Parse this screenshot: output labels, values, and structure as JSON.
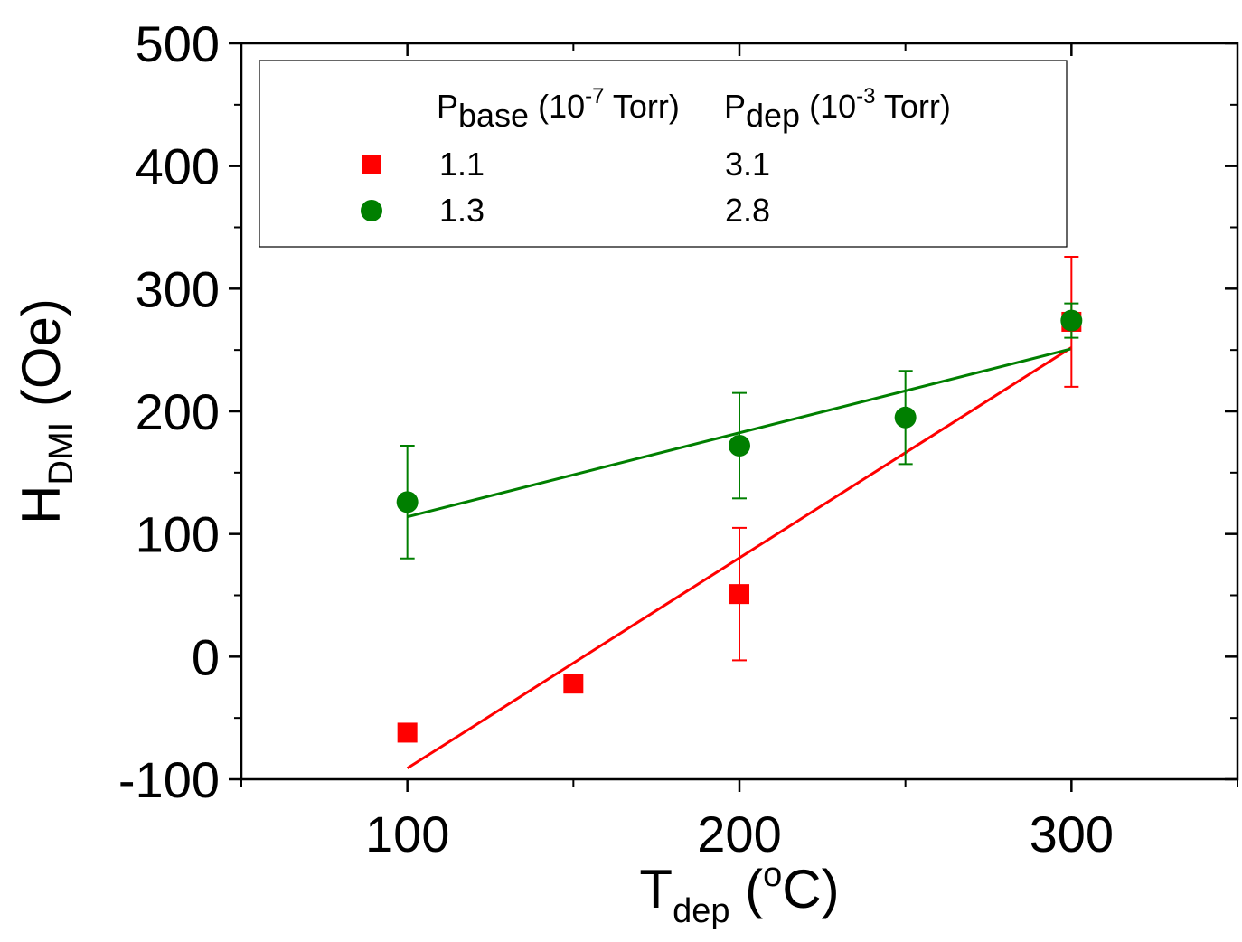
{
  "chart_data": {
    "type": "scatter",
    "xlabel": {
      "main": "T",
      "sub": "dep",
      "open": " (",
      "sup": "o",
      "unit": "C)"
    },
    "ylabel": {
      "main": "H",
      "sub": "DMI",
      "unit": " (Oe)"
    },
    "xlim": [
      50,
      350
    ],
    "ylim": [
      -100,
      500
    ],
    "x_ticks": [
      100,
      200,
      300
    ],
    "y_ticks": [
      -100,
      0,
      100,
      200,
      300,
      400,
      500
    ],
    "x_tick_labels": [
      "100",
      "200",
      "300"
    ],
    "y_tick_labels": [
      "-100",
      "0",
      "100",
      "200",
      "300",
      "400",
      "500"
    ],
    "legend": {
      "position": "top",
      "col1": {
        "main": "P",
        "sub": "base",
        "open": " (10",
        "sup": "-7",
        "close": " Torr)"
      },
      "col2": {
        "main": "P",
        "sub": "dep",
        "open": " (10",
        "sup": "-3",
        "close": " Torr)"
      }
    },
    "series": [
      {
        "name": "red",
        "color": "#ff0000",
        "marker": "square",
        "p_base": "1.1",
        "p_dep": "3.1",
        "points": [
          {
            "x": 100,
            "y": -62,
            "err": null
          },
          {
            "x": 150,
            "y": -22,
            "err": null
          },
          {
            "x": 200,
            "y": 51,
            "err": 54
          },
          {
            "x": 300,
            "y": 273,
            "err": 53
          }
        ],
        "fit": {
          "x": [
            100,
            300
          ],
          "y": [
            -91,
            252
          ]
        }
      },
      {
        "name": "green",
        "color": "#007f00",
        "marker": "circle",
        "p_base": "1.3",
        "p_dep": "2.8",
        "points": [
          {
            "x": 100,
            "y": 126,
            "err": 46
          },
          {
            "x": 200,
            "y": 172,
            "err": 43
          },
          {
            "x": 250,
            "y": 195,
            "err": 38
          },
          {
            "x": 300,
            "y": 274,
            "err": 14
          }
        ],
        "fit": {
          "x": [
            100,
            300
          ],
          "y": [
            114,
            251
          ]
        }
      }
    ]
  }
}
